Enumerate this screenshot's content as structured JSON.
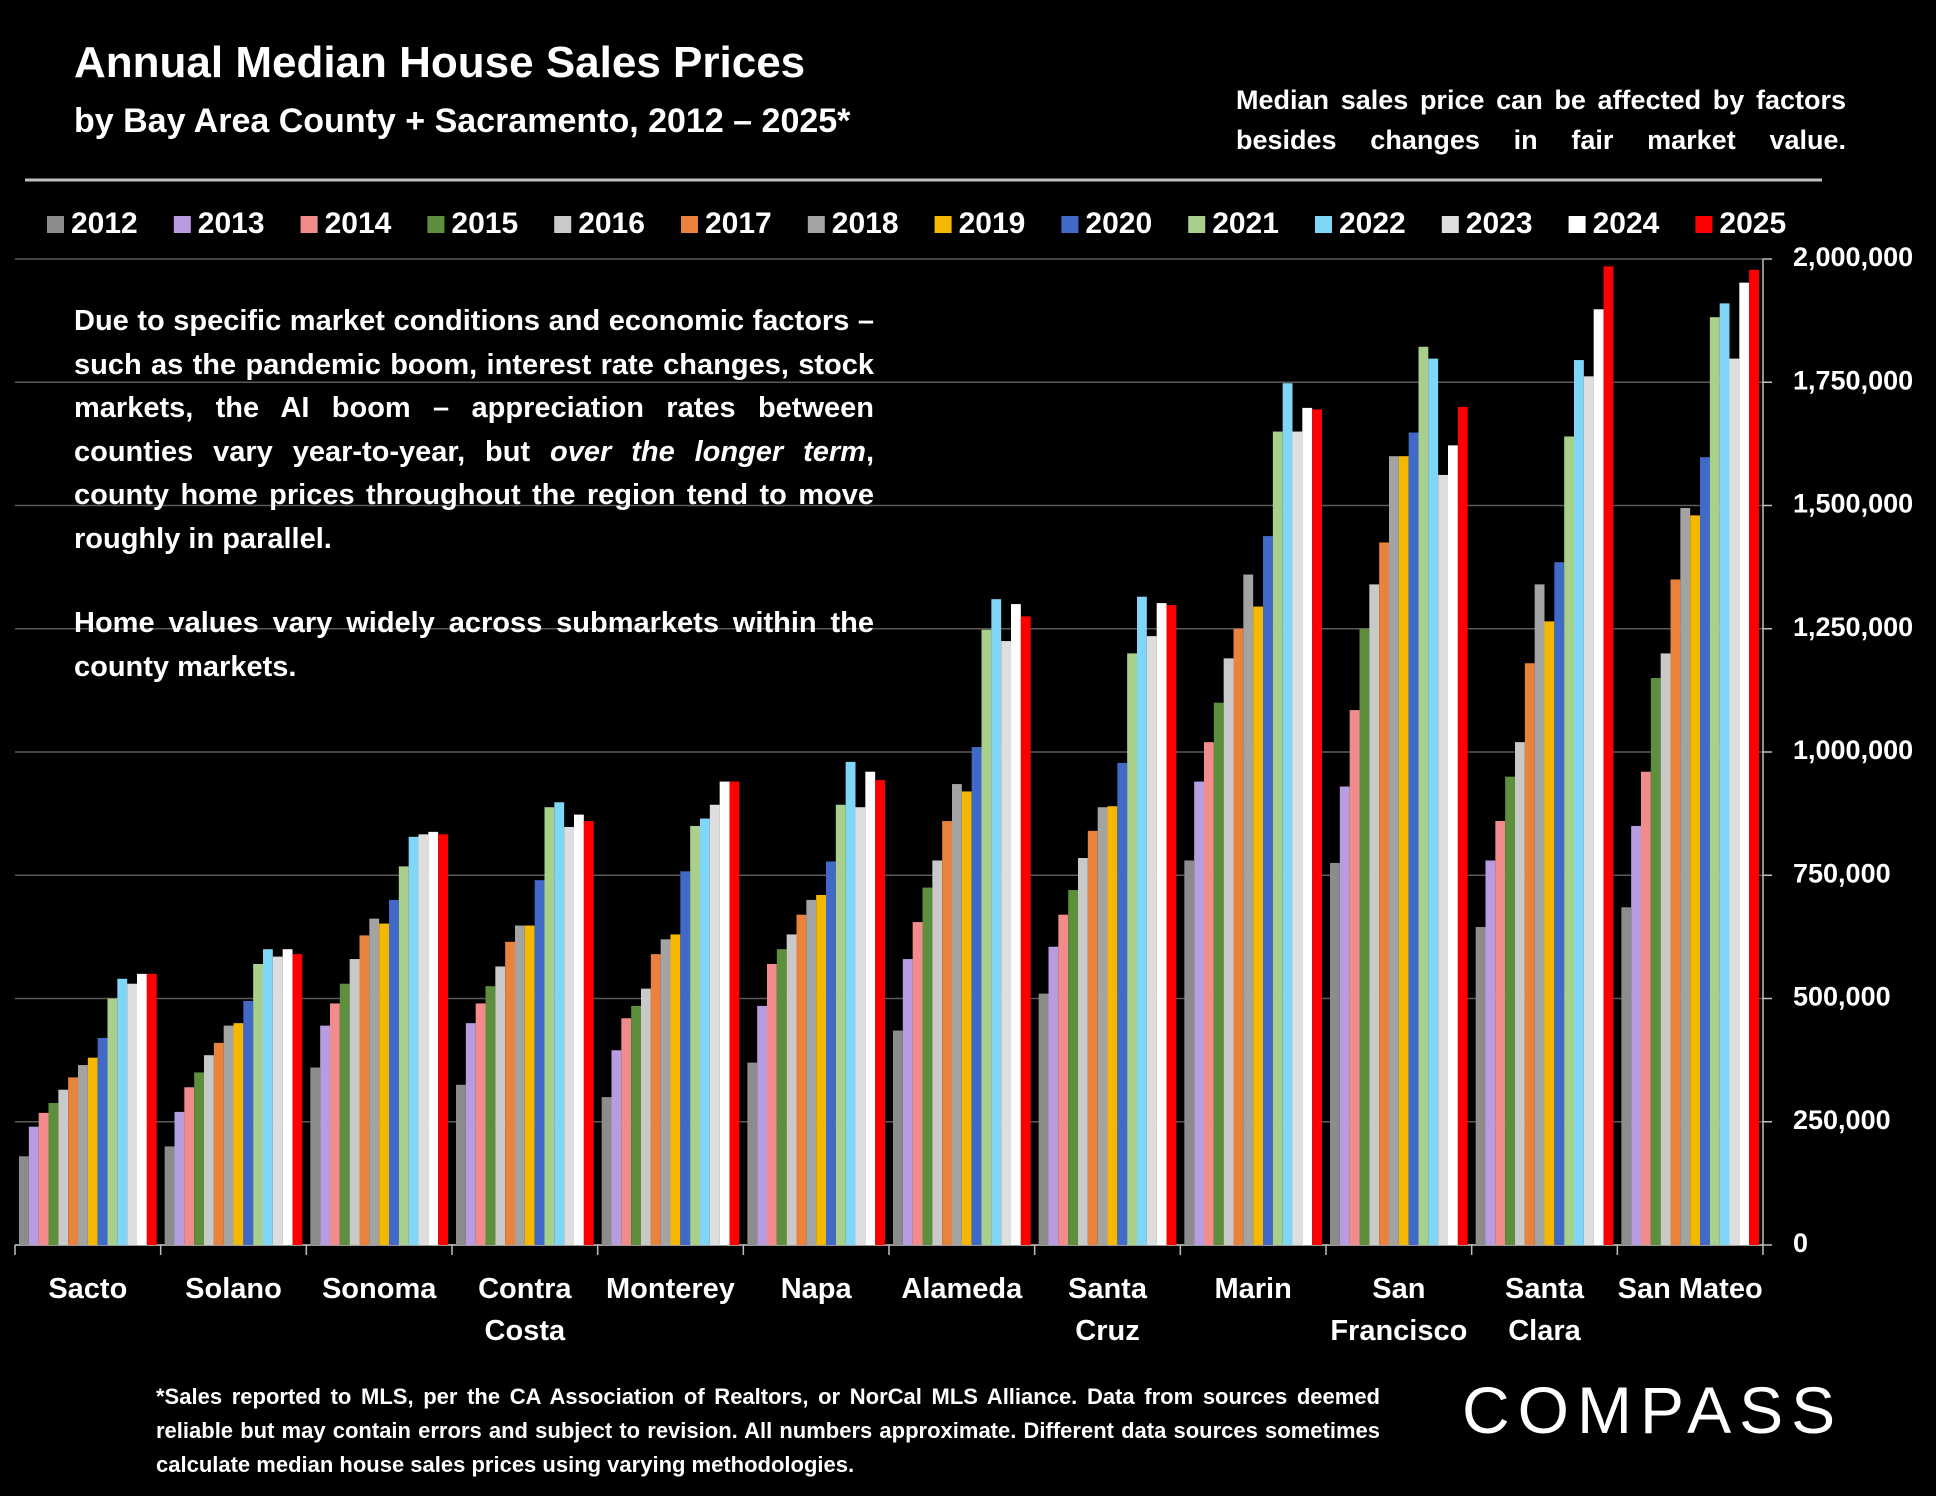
{
  "chart_data": {
    "type": "bar",
    "title": "Annual Median House Sales Prices",
    "subtitle": "by Bay Area County + Sacramento, 2012 – 2025*",
    "note": "Median sales price can be affected by factors besides changes in fair market value.",
    "annotation": [
      [
        "Due to specific market conditions and economic factors – such as the pandemic boom, interest rate changes, stock markets, the AI boom – appreciation rates between counties vary year-to-year, but ",
        "over the longer term",
        ", county home prices throughout the region tend to move roughly in parallel."
      ],
      [
        "Home values vary widely across submarkets within the county markets."
      ]
    ],
    "footnote": "*Sales reported to MLS, per the CA Association of Realtors, or NorCal MLS Alliance. Data from sources deemed reliable but may contain errors and subject to revision. All numbers approximate. Different data sources sometimes calculate median house sales prices using varying methodologies.",
    "brand": "COMPASS",
    "categories": [
      "Sacto",
      "Solano",
      "Sonoma",
      "Contra Costa",
      "Monterey",
      "Napa",
      "Alameda",
      "Santa Cruz",
      "Marin",
      "San Francisco",
      "Santa Clara",
      "San Mateo"
    ],
    "series": [
      {
        "name": "2012",
        "color": "#8c8c8c",
        "values": [
          180000,
          200000,
          360000,
          325000,
          300000,
          370000,
          435000,
          510000,
          780000,
          775000,
          645000,
          685000
        ]
      },
      {
        "name": "2013",
        "color": "#b89ce0",
        "values": [
          240000,
          270000,
          445000,
          450000,
          395000,
          485000,
          580000,
          605000,
          940000,
          930000,
          780000,
          850000
        ]
      },
      {
        "name": "2014",
        "color": "#f28b8b",
        "values": [
          268000,
          320000,
          490000,
          490000,
          460000,
          570000,
          655000,
          670000,
          1020000,
          1085000,
          860000,
          960000
        ]
      },
      {
        "name": "2015",
        "color": "#5e8f3c",
        "values": [
          288000,
          350000,
          530000,
          525000,
          485000,
          600000,
          725000,
          720000,
          1100000,
          1250000,
          950000,
          1150000
        ]
      },
      {
        "name": "2016",
        "color": "#c9c9c9",
        "values": [
          315000,
          385000,
          580000,
          565000,
          520000,
          630000,
          780000,
          785000,
          1190000,
          1340000,
          1020000,
          1200000
        ]
      },
      {
        "name": "2017",
        "color": "#e8823c",
        "values": [
          340000,
          410000,
          628000,
          615000,
          590000,
          670000,
          860000,
          840000,
          1250000,
          1425000,
          1180000,
          1350000
        ]
      },
      {
        "name": "2018",
        "color": "#a3a3a3",
        "values": [
          365000,
          445000,
          662000,
          648000,
          620000,
          700000,
          935000,
          888000,
          1360000,
          1600000,
          1340000,
          1495000
        ]
      },
      {
        "name": "2019",
        "color": "#f5b800",
        "values": [
          380000,
          450000,
          652000,
          648000,
          630000,
          710000,
          920000,
          890000,
          1295000,
          1600000,
          1265000,
          1480000
        ]
      },
      {
        "name": "2020",
        "color": "#4169c8",
        "values": [
          420000,
          495000,
          700000,
          740000,
          758000,
          778000,
          1010000,
          978000,
          1438000,
          1648000,
          1385000,
          1598000
        ]
      },
      {
        "name": "2021",
        "color": "#a8d08c",
        "values": [
          500000,
          570000,
          768000,
          888000,
          850000,
          893000,
          1248000,
          1200000,
          1650000,
          1822000,
          1640000,
          1882000
        ]
      },
      {
        "name": "2022",
        "color": "#7fd6f6",
        "values": [
          540000,
          600000,
          828000,
          898000,
          865000,
          980000,
          1310000,
          1315000,
          1748000,
          1798000,
          1795000,
          1910000
        ]
      },
      {
        "name": "2023",
        "color": "#dedede",
        "values": [
          530000,
          585000,
          833000,
          848000,
          893000,
          888000,
          1225000,
          1235000,
          1650000,
          1562000,
          1762000,
          1798000
        ]
      },
      {
        "name": "2024",
        "color": "#ffffff",
        "values": [
          550000,
          600000,
          838000,
          873000,
          940000,
          960000,
          1300000,
          1302000,
          1698000,
          1622000,
          1898000,
          1952000
        ]
      },
      {
        "name": "2025",
        "color": "#ff0000",
        "values": [
          550000,
          590000,
          833000,
          860000,
          940000,
          943000,
          1275000,
          1298000,
          1695000,
          1700000,
          1985000,
          1978000
        ]
      }
    ],
    "ylim": [
      0,
      2000000
    ],
    "yticks": [
      0,
      {
        "value": 250000,
        "label": "250,000"
      },
      {
        "value": 500000,
        "label": "500,000"
      },
      {
        "value": 750000,
        "label": "750,000"
      },
      {
        "value": 1000000,
        "label": "1,000,000"
      },
      {
        "value": 1250000,
        "label": "1,250,000"
      },
      {
        "value": 1500000,
        "label": "1,500,000"
      },
      {
        "value": 1750000,
        "label": "1,750,000"
      },
      {
        "value": 2000000,
        "label": "2,000,000"
      }
    ],
    "grid": true
  }
}
